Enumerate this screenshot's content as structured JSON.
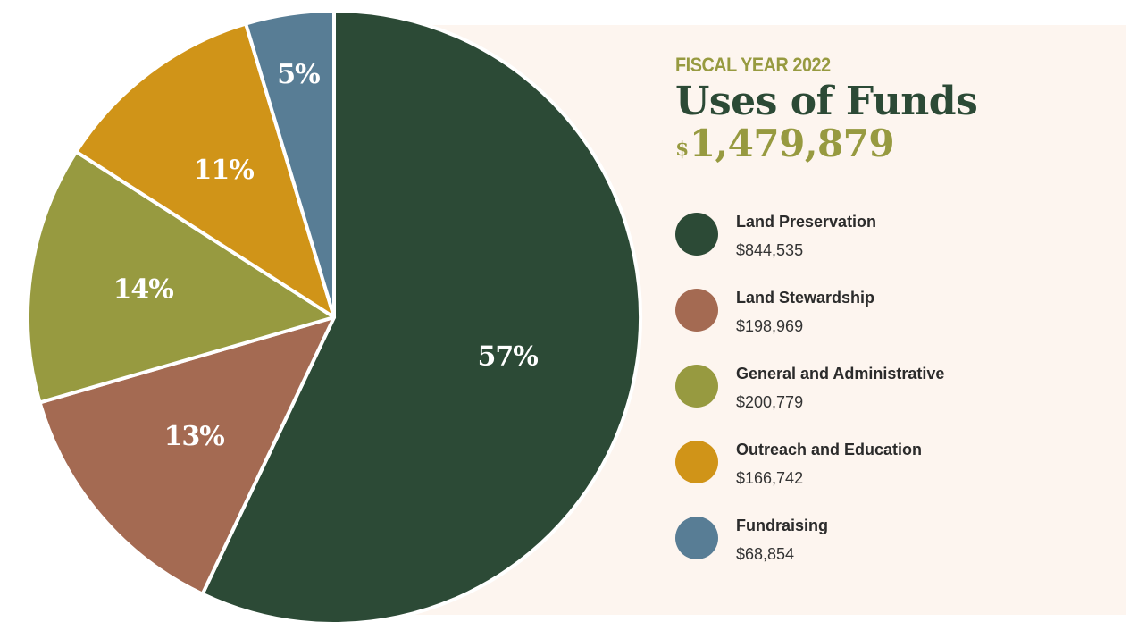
{
  "header": {
    "eyebrow": "FISCAL YEAR 2022",
    "title": "Uses of Funds",
    "total_currency": "$",
    "total_amount": "1,479,879"
  },
  "chart_data": {
    "type": "pie",
    "title": "Uses of Funds",
    "subtitle": "FISCAL YEAR 2022",
    "total": "$1,479,879",
    "legend_position": "right",
    "slices": [
      {
        "name": "Land Preservation",
        "value": 844535,
        "display_value": "$844,535",
        "percent": 57,
        "label": "57%",
        "color": "#2c4a36"
      },
      {
        "name": "Land Stewardship",
        "value": 198969,
        "display_value": "$198,969",
        "percent": 13,
        "label": "13%",
        "color": "#a46a52"
      },
      {
        "name": "General and Administrative",
        "value": 200779,
        "display_value": "$200,779",
        "percent": 14,
        "label": "14%",
        "color": "#979a40"
      },
      {
        "name": "Outreach and Education",
        "value": 166742,
        "display_value": "$166,742",
        "percent": 11,
        "label": "11%",
        "color": "#d09418"
      },
      {
        "name": "Fundraising",
        "value": 68854,
        "display_value": "$68,854",
        "percent": 5,
        "label": "5%",
        "color": "#587d95"
      }
    ]
  },
  "colors": {
    "panel_background": "#fdf5ef",
    "title": "#2c4a36",
    "accent": "#979a40"
  }
}
